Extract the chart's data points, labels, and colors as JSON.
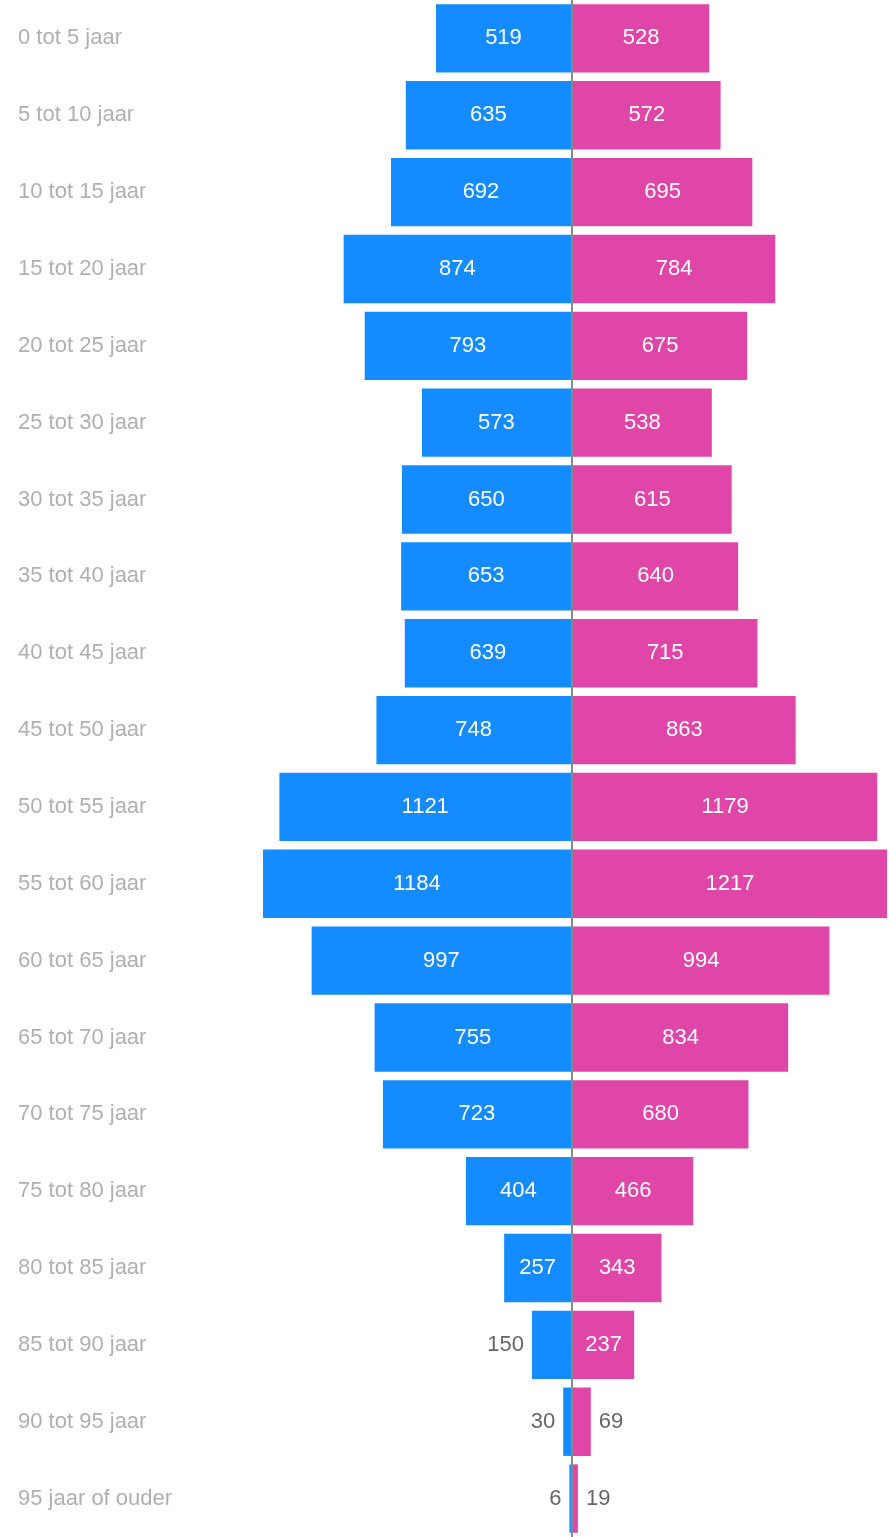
{
  "chart_data": [
    {
      "type": "bar",
      "orientation": "horizontal",
      "tick_labels": "y",
      "grid": false,
      "legend": false,
      "categories": [
        "0 tot 5 jaar",
        "5 tot 10 jaar",
        "10 tot 15 jaar",
        "15 tot 20 jaar",
        "20 tot 25 jaar",
        "25 tot 30 jaar",
        "30 tot 35 jaar",
        "35 tot 40 jaar",
        "40 tot 45 jaar",
        "45 tot 50 jaar",
        "50 tot 55 jaar",
        "55 tot 60 jaar",
        "60 tot 65 jaar",
        "65 tot 70 jaar",
        "70 tot 75 jaar",
        "75 tot 80 jaar",
        "80 tot 85 jaar",
        "85 tot 90 jaar",
        "90 tot 95 jaar",
        "95 jaar of ouder"
      ],
      "xlim": [
        1184,
        0
      ],
      "series": [
        {
          "color": "#148cff",
          "values": [
            519,
            635,
            692,
            874,
            793,
            573,
            650,
            653,
            639,
            748,
            1121,
            1184,
            997,
            755,
            723,
            404,
            257,
            150,
            30,
            6
          ]
        }
      ],
      "data_labels": true
    },
    {
      "type": "bar",
      "orientation": "horizontal",
      "tick_labels": false,
      "grid": false,
      "legend": false,
      "categories": [
        null,
        null,
        null,
        null,
        null,
        null,
        null,
        null,
        null,
        null,
        null,
        null,
        null,
        null,
        null,
        null,
        null,
        null,
        null,
        null
      ],
      "xlim": [
        0,
        1217
      ],
      "series": [
        {
          "color": "#e045a8",
          "values": [
            528,
            572,
            695,
            784,
            675,
            538,
            615,
            640,
            715,
            863,
            1179,
            1217,
            994,
            834,
            680,
            466,
            343,
            237,
            69,
            19
          ]
        }
      ],
      "data_labels": true,
      "ref_lines": [
        {
          "axis": "x",
          "value": 0,
          "color": "#888888"
        }
      ]
    }
  ]
}
